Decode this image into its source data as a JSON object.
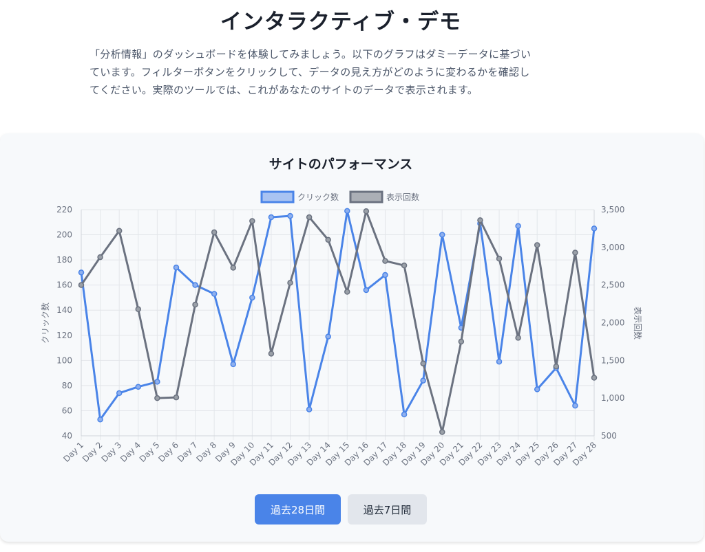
{
  "header": {
    "title": "インタラクティブ・デモ",
    "description_lines": [
      "「分析情報」のダッシュボードを体験してみましょう。以下のグラフはダミーデータに基づい",
      "ています。フィルターボタンをクリックして、データの見え方がどのように変わるかを確認し",
      "てください。実際のツールでは、これがあなたのサイトのデータで表示されます。"
    ]
  },
  "buttons": {
    "range_28_label": "過去28日間",
    "range_7_label": "過去7日間"
  },
  "colors": {
    "clicks": "#4a84e8",
    "impressions": "#6b7280",
    "grid": "#e3e6ea",
    "axis_text": "#6b7280"
  },
  "chart_data": {
    "type": "line",
    "title": "サイトのパフォーマンス",
    "legend_position": "top",
    "grid": true,
    "x": [
      "Day 1",
      "Day 2",
      "Day 3",
      "Day 4",
      "Day 5",
      "Day 6",
      "Day 7",
      "Day 8",
      "Day 9",
      "Day 10",
      "Day 11",
      "Day 12",
      "Day 13",
      "Day 14",
      "Day 15",
      "Day 16",
      "Day 17",
      "Day 18",
      "Day 19",
      "Day 20",
      "Day 21",
      "Day 22",
      "Day 23",
      "Day 24",
      "Day 25",
      "Day 26",
      "Day 27",
      "Day 28"
    ],
    "y_left": {
      "label": "クリック数",
      "min": 40,
      "max": 220,
      "ticks": [
        40,
        60,
        80,
        100,
        120,
        140,
        160,
        180,
        200,
        220
      ]
    },
    "y_right": {
      "label": "表示回数",
      "min": 500,
      "max": 3500,
      "ticks": [
        500,
        1000,
        1500,
        2000,
        2500,
        3000,
        3500
      ],
      "tick_labels": [
        "500",
        "1,000",
        "1,500",
        "2,000",
        "2,500",
        "3,000",
        "3,500"
      ]
    },
    "series": [
      {
        "name": "クリック数",
        "axis": "left",
        "values": [
          170,
          53,
          74,
          79,
          83,
          174,
          160,
          153,
          97,
          150,
          214,
          215,
          61,
          119,
          219,
          156,
          168,
          57,
          84,
          200,
          126,
          209,
          99,
          207,
          77,
          94,
          64,
          205
        ]
      },
      {
        "name": "表示回数",
        "axis": "right",
        "values": [
          2500,
          2870,
          3220,
          2180,
          1000,
          1010,
          2240,
          3200,
          2730,
          3350,
          1590,
          2530,
          3400,
          3100,
          2410,
          3480,
          2820,
          2760,
          1460,
          550,
          1750,
          3360,
          2850,
          1800,
          3030,
          1420,
          2930,
          1270
        ]
      }
    ]
  }
}
